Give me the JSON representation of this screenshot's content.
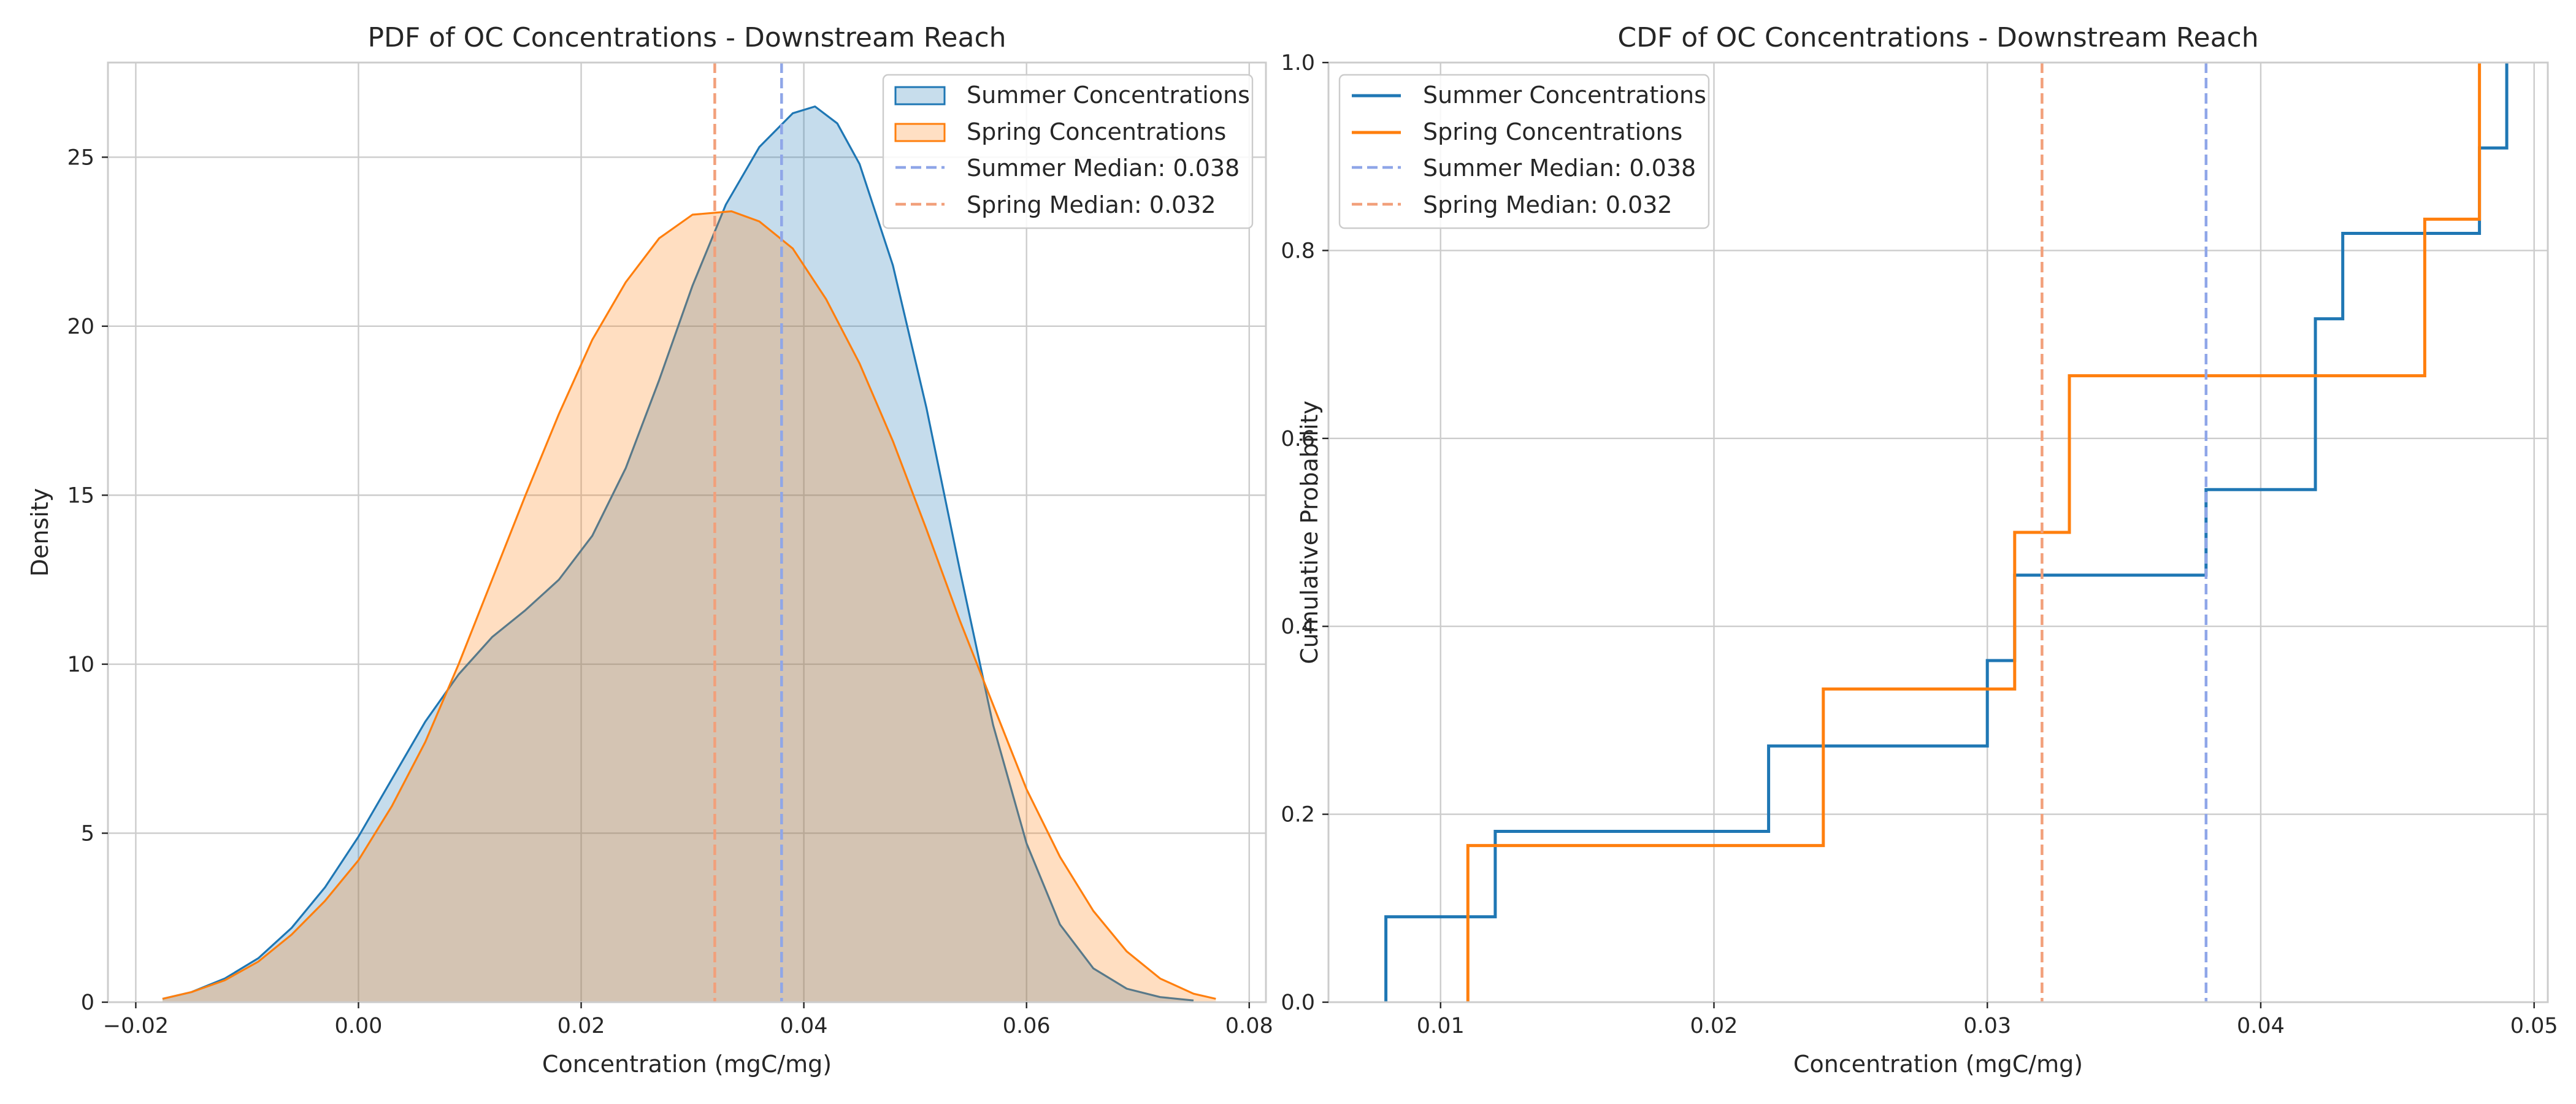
{
  "chart_data": [
    {
      "type": "area",
      "title": "PDF of OC Concentrations - Downstream Reach",
      "xlabel": "Concentration (mgC/mg)",
      "ylabel": "Density",
      "xlim": [
        -0.0225,
        0.0815
      ],
      "ylim": [
        0,
        27.8
      ],
      "xticks": [
        -0.02,
        0.0,
        0.02,
        0.04,
        0.06,
        0.08
      ],
      "xtick_labels": [
        "−0.02",
        "0.00",
        "0.02",
        "0.04",
        "0.06",
        "0.08"
      ],
      "yticks": [
        0,
        5,
        10,
        15,
        20,
        25
      ],
      "ytick_labels": [
        "0",
        "5",
        "10",
        "15",
        "20",
        "25"
      ],
      "grid": true,
      "legend_position": "top-right",
      "series": [
        {
          "name": "Summer Concentrations",
          "color": "#1f77b4",
          "x": [
            -0.0176,
            -0.015,
            -0.012,
            -0.009,
            -0.006,
            -0.003,
            0.0,
            0.003,
            0.006,
            0.009,
            0.012,
            0.015,
            0.018,
            0.021,
            0.024,
            0.027,
            0.03,
            0.033,
            0.036,
            0.039,
            0.041,
            0.043,
            0.045,
            0.048,
            0.051,
            0.054,
            0.057,
            0.06,
            0.063,
            0.066,
            0.069,
            0.072,
            0.075
          ],
          "y": [
            0.1,
            0.3,
            0.7,
            1.3,
            2.2,
            3.4,
            4.9,
            6.6,
            8.3,
            9.7,
            10.8,
            11.6,
            12.5,
            13.8,
            15.8,
            18.4,
            21.2,
            23.6,
            25.3,
            26.3,
            26.5,
            26.0,
            24.8,
            21.8,
            17.6,
            12.8,
            8.2,
            4.7,
            2.3,
            1.0,
            0.4,
            0.15,
            0.05
          ]
        },
        {
          "name": "Spring Concentrations",
          "color": "#ff7f0e",
          "x": [
            -0.0176,
            -0.015,
            -0.012,
            -0.009,
            -0.006,
            -0.003,
            0.0,
            0.003,
            0.006,
            0.009,
            0.012,
            0.015,
            0.018,
            0.021,
            0.024,
            0.027,
            0.03,
            0.0335,
            0.036,
            0.039,
            0.042,
            0.045,
            0.048,
            0.051,
            0.054,
            0.057,
            0.06,
            0.063,
            0.066,
            0.069,
            0.072,
            0.075,
            0.077
          ],
          "y": [
            0.1,
            0.3,
            0.65,
            1.2,
            2.0,
            3.0,
            4.2,
            5.8,
            7.7,
            10.0,
            12.5,
            15.0,
            17.4,
            19.6,
            21.3,
            22.6,
            23.3,
            23.4,
            23.1,
            22.3,
            20.8,
            18.9,
            16.6,
            14.0,
            11.3,
            8.8,
            6.3,
            4.3,
            2.7,
            1.5,
            0.7,
            0.25,
            0.1
          ]
        }
      ],
      "reference_lines": [
        {
          "label": "Summer Median: 0.038",
          "x": 0.038,
          "color": "#8fa6e8"
        },
        {
          "label": "Spring Median: 0.032",
          "x": 0.032,
          "color": "#f2a07b"
        }
      ]
    },
    {
      "type": "line",
      "subtype": "step",
      "title": "CDF of OC Concentrations - Downstream Reach",
      "xlabel": "Concentration (mgC/mg)",
      "ylabel": "Cumulative Probability",
      "xlim": [
        0.0059,
        0.0505
      ],
      "ylim": [
        0,
        1.0
      ],
      "xticks": [
        0.01,
        0.02,
        0.03,
        0.04,
        0.05
      ],
      "xtick_labels": [
        "0.01",
        "0.02",
        "0.03",
        "0.04",
        "0.05"
      ],
      "yticks": [
        0,
        0.2,
        0.4,
        0.6,
        0.8,
        1.0
      ],
      "ytick_labels": [
        "0.0",
        "0.2",
        "0.4",
        "0.6",
        "0.8",
        "1.0"
      ],
      "grid": true,
      "legend_position": "top-left",
      "series": [
        {
          "name": "Summer Concentrations",
          "color": "#1f77b4",
          "x": [
            0.008,
            0.012,
            0.022,
            0.03,
            0.031,
            0.038,
            0.042,
            0.043,
            0.048,
            0.049
          ],
          "y": [
            0.0909,
            0.1818,
            0.2727,
            0.3636,
            0.4545,
            0.5455,
            0.7273,
            0.8182,
            0.9091,
            1.0
          ]
        },
        {
          "name": "Spring Concentrations",
          "color": "#ff7f0e",
          "x": [
            0.011,
            0.024,
            0.031,
            0.033,
            0.046,
            0.048
          ],
          "y": [
            0.1667,
            0.3333,
            0.5,
            0.6667,
            0.8333,
            1.0
          ]
        }
      ],
      "reference_lines": [
        {
          "label": "Summer Median: 0.038",
          "x": 0.038,
          "color": "#8fa6e8"
        },
        {
          "label": "Spring Median: 0.032",
          "x": 0.032,
          "color": "#f2a07b"
        }
      ]
    }
  ]
}
